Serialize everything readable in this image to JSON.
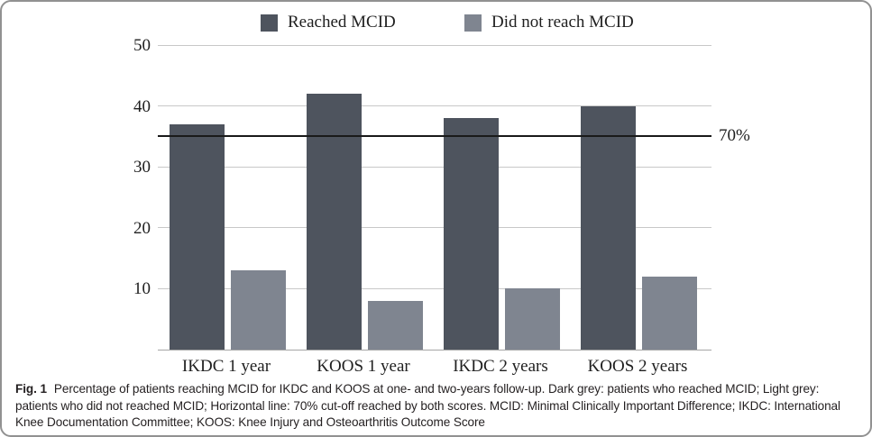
{
  "figure": {
    "caption_label": "Fig. 1",
    "caption_text": "Percentage of patients reaching MCID for IKDC and KOOS at one- and two-years follow-up. Dark grey: patients who reached MCID; Light grey: patients who did not reached MCID; Horizontal line: 70% cut-off reached by both scores. MCID: Minimal Clinically Important Difference; IKDC: International Knee Documentation Committee; KOOS: Knee Injury and Osteoarthritis Outcome Score"
  },
  "chart_data": {
    "type": "bar",
    "categories": [
      "IKDC 1 year",
      "KOOS 1 year",
      "IKDC 2 years",
      "KOOS 2 years"
    ],
    "series": [
      {
        "name": "Reached MCID",
        "color": "#4e545e",
        "values": [
          37,
          42,
          38,
          40
        ]
      },
      {
        "name": "Did not reach MCID",
        "color": "#7f8590",
        "values": [
          13,
          8,
          10,
          12
        ]
      }
    ],
    "title": "",
    "xlabel": "",
    "ylabel": "",
    "ylim": [
      0,
      50
    ],
    "yticks": [
      10,
      20,
      30,
      40,
      50
    ],
    "grid": true,
    "legend_position": "top",
    "reference_line": {
      "value": 35,
      "label": "70%",
      "color": "#1a1a1a"
    },
    "colors": {
      "gridline": "#c8c8c8",
      "axis": "#a6a6a6",
      "dark_series": "#4e545e",
      "light_series": "#7f8590"
    }
  }
}
